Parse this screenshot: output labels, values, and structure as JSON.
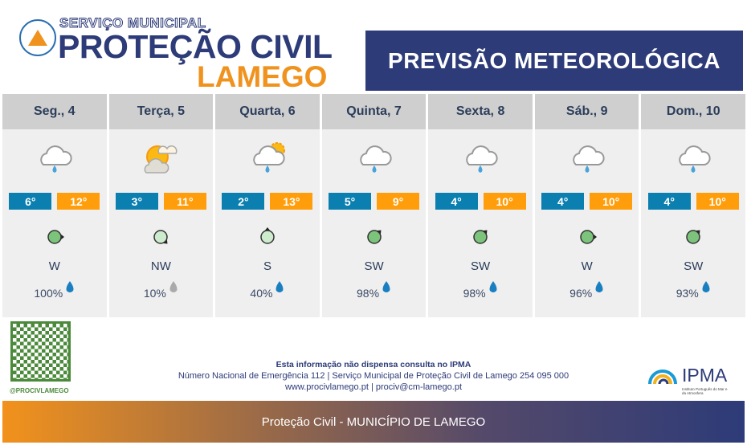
{
  "header": {
    "service": "SERVIÇO MUNICIPAL",
    "org": "PROTEÇÃO CIVIL",
    "city": "LAMEGO",
    "title": "PREVISÃO METEOROLÓGICA"
  },
  "days": [
    {
      "label": "Seg., 4",
      "icon": "rain-cloud-icon",
      "min": "6°",
      "max": "12°",
      "wind_dir": "W",
      "wind_class": "moderate",
      "precip": "100%"
    },
    {
      "label": "Terça, 5",
      "icon": "sun-cloud-icon",
      "min": "3°",
      "max": "11°",
      "wind_dir": "NW",
      "wind_class": "weak",
      "precip": "10%"
    },
    {
      "label": "Quarta, 6",
      "icon": "sun-rain-cloud-icon",
      "min": "2°",
      "max": "13°",
      "wind_dir": "S",
      "wind_class": "weak",
      "precip": "40%"
    },
    {
      "label": "Quinta, 7",
      "icon": "rain-cloud-icon",
      "min": "5°",
      "max": "9°",
      "wind_dir": "SW",
      "wind_class": "moderate",
      "precip": "98%"
    },
    {
      "label": "Sexta, 8",
      "icon": "rain-cloud-icon",
      "min": "4°",
      "max": "10°",
      "wind_dir": "SW",
      "wind_class": "moderate",
      "precip": "98%"
    },
    {
      "label": "Sáb., 9",
      "icon": "rain-cloud-icon",
      "min": "4°",
      "max": "10°",
      "wind_dir": "W",
      "wind_class": "moderate",
      "precip": "96%"
    },
    {
      "label": "Dom., 10",
      "icon": "rain-cloud-icon",
      "min": "4°",
      "max": "10°",
      "wind_dir": "SW",
      "wind_class": "moderate",
      "precip": "93%"
    }
  ],
  "colors": {
    "navy": "#2d3b78",
    "orange": "#f0921e",
    "min": "#0a7fb0",
    "max": "#ff9d0a",
    "wind_moderate": "#7cc47c",
    "wind_weak": "#cdeccd",
    "drop": "#1a7fc0",
    "drop_low": "#aaaaaa"
  },
  "footer_info": {
    "notice": "Esta informação não dispensa consulta no IPMA",
    "contacts": "Número Nacional de Emergência 112 | Serviço Municipal de Proteção Civil de Lamego 254 095 000",
    "web": "www.procivlamego.pt | prociv@cm-lamego.pt"
  },
  "social": "@PROCIVLAMEGO",
  "ipma": {
    "name": "IPMA",
    "sub": "Instituto Português do Mar e da Atmosfera"
  },
  "footer": "Proteção Civil - MUNICÍPIO DE LAMEGO"
}
